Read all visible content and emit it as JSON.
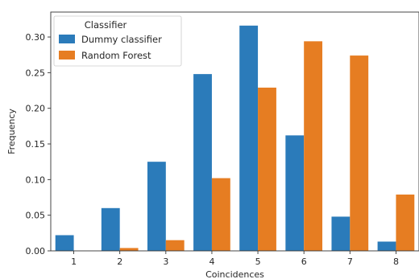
{
  "chart_data": {
    "type": "bar",
    "xlabel": "Coincidences",
    "ylabel": "Frequency",
    "categories": [
      "1",
      "2",
      "3",
      "4",
      "5",
      "6",
      "7",
      "8"
    ],
    "series": [
      {
        "name": "Dummy classifier",
        "color": "#2b7bba",
        "values": [
          0.022,
          0.06,
          0.125,
          0.248,
          0.316,
          0.162,
          0.048,
          0.013
        ]
      },
      {
        "name": "Random Forest",
        "color": "#e67d22",
        "values": [
          0.0,
          0.004,
          0.015,
          0.102,
          0.229,
          0.294,
          0.274,
          0.079
        ]
      }
    ],
    "ylim": [
      0,
      0.335
    ],
    "yticks": [
      "0.00",
      "0.05",
      "0.10",
      "0.15",
      "0.20",
      "0.25",
      "0.30"
    ],
    "legend": {
      "title": "Classifier",
      "position": "top-left"
    },
    "grid": false
  }
}
